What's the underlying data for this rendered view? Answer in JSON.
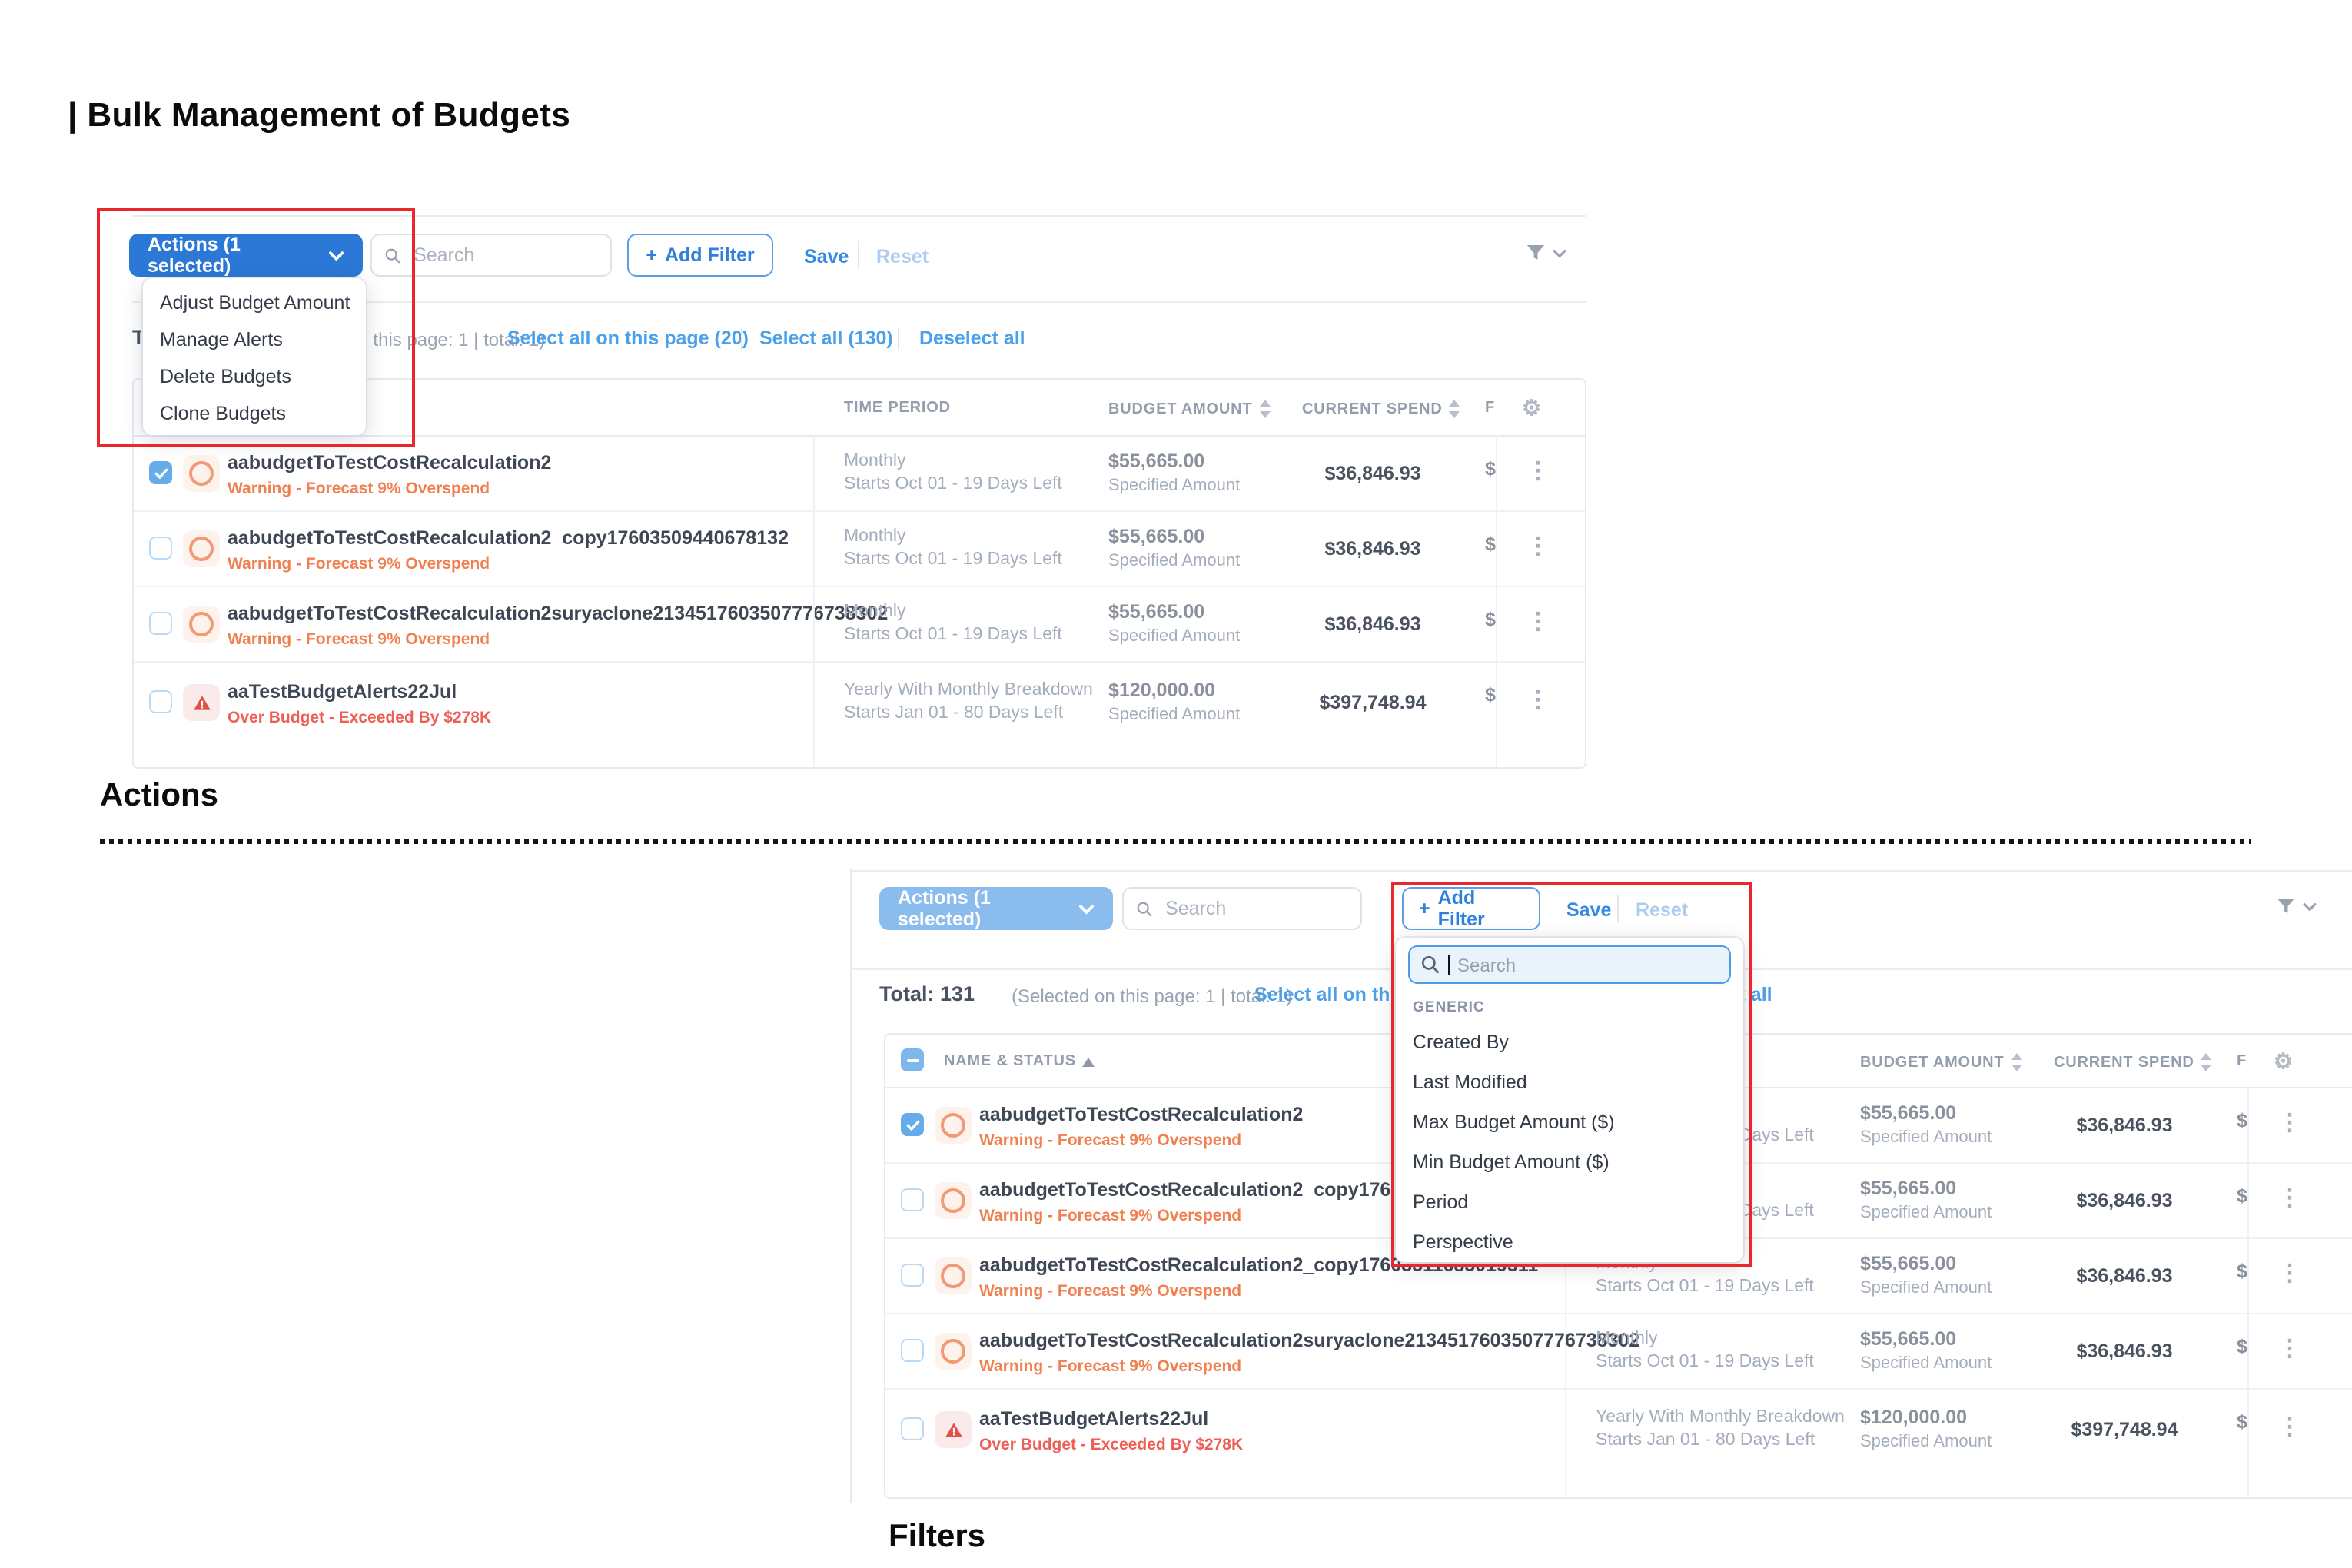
{
  "page": {
    "title": "| Bulk Management of Budgets",
    "caption_actions": "Actions",
    "caption_filters": "Filters"
  },
  "colors": {
    "highlight_red": "#e8282c",
    "primary_blue": "#2b78d7",
    "light_blue": "#8abced",
    "link_blue": "#4aa0ea",
    "warning_orange": "#f08050",
    "danger_red": "#ed5f55"
  },
  "icons": {
    "kebab_glyph": "⋮",
    "gear_glyph": "⚙",
    "plus_glyph": "+",
    "search": "magnifier",
    "filter": "funnel",
    "sort": "up-down-arrows",
    "sort_asc": "up-arrow",
    "warning": "orange-ring",
    "alert": "red-triangle-exclamation"
  },
  "toolbar": {
    "actions_label": "Actions (1 selected)",
    "search_placeholder": "Search",
    "add_filter_label": "Add Filter",
    "save_label": "Save",
    "reset_label": "Reset"
  },
  "summary": {
    "total_label": "Total: 131",
    "selected_info": "(Selected on this page: 1 | total: 1)",
    "select_page": "Select all on this page (20)",
    "select_all": "Select all (130)",
    "deselect_all": "Deselect all"
  },
  "table_headers": {
    "name_status": "NAME & STATUS",
    "time_period": "TIME PERIOD",
    "budget_amount": "BUDGET AMOUNT",
    "current_spend": "CURRENT SPEND",
    "forecast_truncated": "F"
  },
  "actions_menu": {
    "items": [
      "Adjust Budget Amount",
      "Manage Alerts",
      "Delete Budgets",
      "Clone Budgets"
    ]
  },
  "filter_menu": {
    "search_placeholder": "Search",
    "group_label": "GENERIC",
    "items": [
      "Created By",
      "Last Modified",
      "Max Budget Amount ($)",
      "Min Budget Amount ($)",
      "Period",
      "Perspective"
    ]
  },
  "shot1": {
    "rows": [
      {
        "name": "aabudgetToTestCostRecalculation2",
        "status": "Warning - Forecast 9% Overspend",
        "kind": "warning",
        "checked": true,
        "period1": "Monthly",
        "period2": "Starts Oct 01 - 19 Days Left",
        "amount": "$55,665.00",
        "amount_type": "Specified Amount",
        "spend": "$36,846.93",
        "f": "$"
      },
      {
        "name": "aabudgetToTestCostRecalculation2_copy17603509440678132",
        "status": "Warning - Forecast 9% Overspend",
        "kind": "warning",
        "checked": false,
        "period1": "Monthly",
        "period2": "Starts Oct 01 - 19 Days Left",
        "amount": "$55,665.00",
        "amount_type": "Specified Amount",
        "spend": "$36,846.93",
        "f": "$"
      },
      {
        "name": "aabudgetToTestCostRecalculation2suryaclone2134517603507776738302",
        "status": "Warning - Forecast 9% Overspend",
        "kind": "warning",
        "checked": false,
        "period1": "Monthly",
        "period2": "Starts Oct 01 - 19 Days Left",
        "amount": "$55,665.00",
        "amount_type": "Specified Amount",
        "spend": "$36,846.93",
        "f": "$"
      },
      {
        "name": "aaTestBudgetAlerts22Jul",
        "status": "Over Budget - Exceeded By $278K",
        "kind": "over",
        "checked": false,
        "tall": true,
        "period1": "Yearly With Monthly Breakdown",
        "period2": "Starts Jan 01 - 80 Days Left",
        "amount": "$120,000.00",
        "amount_type": "Specified Amount",
        "spend": "$397,748.94",
        "f": "$"
      }
    ]
  },
  "shot2": {
    "rows": [
      {
        "name": "aabudgetToTestCostRecalculation2",
        "status": "Warning - Forecast 9% Overspend",
        "kind": "warning",
        "checked": true,
        "period1": "Monthly",
        "period2": "Starts Oct 01 - 19 Days Left",
        "amount": "$55,665.00",
        "amount_type": "Specified Amount",
        "spend": "$36,846.93",
        "f": "$"
      },
      {
        "name": "aabudgetToTestCostRecalculation2_copy17603509440678132",
        "status": "Warning - Forecast 9% Overspend",
        "kind": "warning",
        "checked": false,
        "period1": "Monthly",
        "period2": "Starts Oct 01 - 19 Days Left",
        "amount": "$55,665.00",
        "amount_type": "Specified Amount",
        "spend": "$36,846.93",
        "f": "$"
      },
      {
        "name": "aabudgetToTestCostRecalculation2_copy17603511685019511",
        "status": "Warning - Forecast 9% Overspend",
        "kind": "warning",
        "checked": false,
        "period1": "Monthly",
        "period2": "Starts Oct 01 - 19 Days Left",
        "amount": "$55,665.00",
        "amount_type": "Specified Amount",
        "spend": "$36,846.93",
        "f": "$"
      },
      {
        "name": "aabudgetToTestCostRecalculation2suryaclone2134517603507776738302",
        "status": "Warning - Forecast 9% Overspend",
        "kind": "warning",
        "checked": false,
        "period1": "Monthly",
        "period2": "Starts Oct 01 - 19 Days Left",
        "amount": "$55,665.00",
        "amount_type": "Specified Amount",
        "spend": "$36,846.93",
        "f": "$"
      },
      {
        "name": "aaTestBudgetAlerts22Jul",
        "status": "Over Budget - Exceeded By $278K",
        "kind": "over",
        "checked": false,
        "tall": true,
        "period1": "Yearly With Monthly Breakdown",
        "period2": "Starts Jan 01 - 80 Days Left",
        "amount": "$120,000.00",
        "amount_type": "Specified Amount",
        "spend": "$397,748.94",
        "f": "$"
      }
    ]
  }
}
